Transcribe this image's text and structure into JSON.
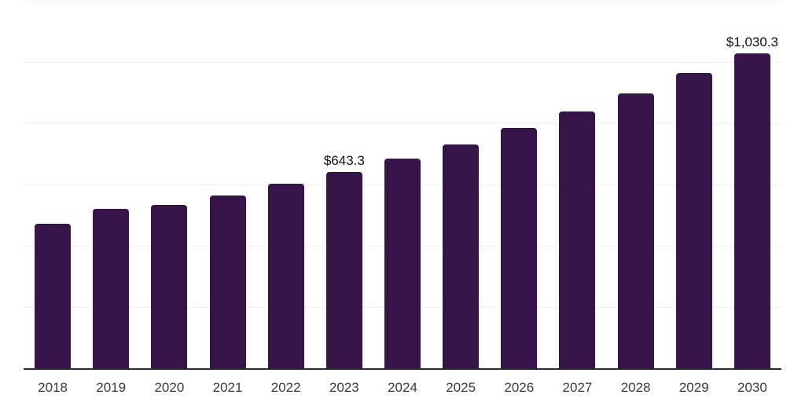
{
  "chart_data": {
    "type": "bar",
    "title": "",
    "xlabel": "",
    "ylabel": "",
    "categories": [
      "2018",
      "2019",
      "2020",
      "2021",
      "2022",
      "2023",
      "2024",
      "2025",
      "2026",
      "2027",
      "2028",
      "2029",
      "2030"
    ],
    "values": [
      473.6,
      522.6,
      536.9,
      566.4,
      604.8,
      643.3,
      688.4,
      734.5,
      786.8,
      842.2,
      900.4,
      967.0,
      1030.3
    ],
    "data_labels": [
      null,
      null,
      null,
      null,
      null,
      "$643.3",
      null,
      null,
      null,
      null,
      null,
      null,
      "$1,030.3"
    ],
    "ylim": [
      0,
      1200
    ],
    "grid_step": 200,
    "grid": "horizontal-only",
    "legend_position": "none",
    "y_axis_labels_visible": false,
    "colors": {
      "bar": "#361349",
      "gridline": "#f0f0f0",
      "axis_line": "#2b2b2b",
      "tick_label": "#3b3b3b",
      "data_label": "#111111",
      "background": "#ffffff"
    }
  }
}
